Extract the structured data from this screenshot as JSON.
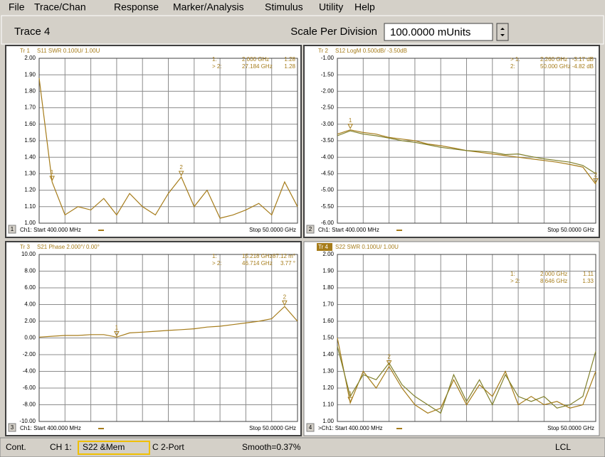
{
  "menu": [
    "File",
    "Trace/Chan",
    "Response",
    "Marker/Analysis",
    "Stimulus",
    "Utility",
    "Help"
  ],
  "toolbar": {
    "trace": "Trace 4",
    "scale_label": "Scale Per Division",
    "scale_value": "100.0000 mUnits"
  },
  "panels": [
    {
      "number": "1",
      "trace": "Tr 1",
      "description": "S11 SWR 0.100U/  1.00U",
      "ylim": [
        1,
        2
      ],
      "yticks": [
        {
          "value": 2,
          "label": "2.00"
        },
        {
          "value": 1.9,
          "label": "1.90"
        },
        {
          "value": 1.8,
          "label": "1.80"
        },
        {
          "value": 1.7,
          "label": "1.70"
        },
        {
          "value": 1.6,
          "label": "1.60"
        },
        {
          "value": 1.5,
          "label": "1.50"
        },
        {
          "value": 1.4,
          "label": "1.40"
        },
        {
          "value": 1.3,
          "label": "1.30"
        },
        {
          "value": 1.2,
          "label": "1.20"
        },
        {
          "value": 1.1,
          "label": "1.10"
        },
        {
          "value": 1,
          "label": "1.00"
        }
      ],
      "markers": [
        [
          "1:",
          "2.000 GHz",
          "1.28"
        ],
        [
          "> 2:",
          "27.184 GHz",
          "1.28"
        ]
      ],
      "marker_glyphs": [
        "1",
        "2"
      ],
      "start": "Ch1: Start  400.000 MHz",
      "stop": "Stop  50.0000 GHz",
      "traces": [
        {
          "color": "#a67c1a",
          "values": [
            1.88,
            1.25,
            1.05,
            1.1,
            1.08,
            1.15,
            1.05,
            1.18,
            1.1,
            1.05,
            1.18,
            1.28,
            1.1,
            1.2,
            1.03,
            1.05,
            1.08,
            1.12,
            1.05,
            1.25,
            1.1
          ]
        }
      ]
    },
    {
      "number": "2",
      "trace": "Tr 2",
      "description": "S12 LogM 0.500dB/  -3.50dB",
      "ylim": [
        -6,
        -1
      ],
      "yticks": [
        {
          "value": -1,
          "label": "-1.00"
        },
        {
          "value": -1.5,
          "label": "-1.50"
        },
        {
          "value": -2,
          "label": "-2.00"
        },
        {
          "value": -2.5,
          "label": "-2.50"
        },
        {
          "value": -3,
          "label": "-3.00"
        },
        {
          "value": -3.5,
          "label": "-3.50"
        },
        {
          "value": -4,
          "label": "-4.00"
        },
        {
          "value": -4.5,
          "label": "-4.50"
        },
        {
          "value": -5,
          "label": "-5.00"
        },
        {
          "value": -5.5,
          "label": "-5.50"
        },
        {
          "value": -6,
          "label": "-6.00"
        }
      ],
      "markers": [
        [
          "> 1:",
          "2.260 GHz",
          "-3.17 dB"
        ],
        [
          "2:",
          "50.000 GHz",
          "-4.82 dB"
        ]
      ],
      "marker_glyphs": [
        "1",
        "2"
      ],
      "start": "Ch1: Start  400.000 MHz",
      "stop": "Stop  50.0000 GHz",
      "traces": [
        {
          "color": "#a67c1a",
          "values": [
            -3.3,
            -3.17,
            -3.25,
            -3.3,
            -3.4,
            -3.45,
            -3.5,
            -3.6,
            -3.65,
            -3.72,
            -3.8,
            -3.85,
            -3.9,
            -3.95,
            -4.0,
            -4.05,
            -4.1,
            -4.15,
            -4.22,
            -4.3,
            -4.82
          ]
        },
        {
          "color": "#7f7f2a",
          "values": [
            -3.35,
            -3.2,
            -3.3,
            -3.35,
            -3.42,
            -3.5,
            -3.55,
            -3.62,
            -3.7,
            -3.75,
            -3.8,
            -3.82,
            -3.85,
            -3.92,
            -3.9,
            -3.98,
            -4.05,
            -4.1,
            -4.15,
            -4.25,
            -4.5
          ]
        }
      ]
    },
    {
      "number": "3",
      "trace": "Tr 3",
      "description": "S21 Phase 2.000°/  0.00°",
      "ylim": [
        -10,
        10
      ],
      "yticks": [
        {
          "value": 10,
          "label": "10.00"
        },
        {
          "value": 8,
          "label": "8.00"
        },
        {
          "value": 6,
          "label": "6.00"
        },
        {
          "value": 4,
          "label": "4.00"
        },
        {
          "value": 2,
          "label": "2.00"
        },
        {
          "value": 0,
          "label": "0.00"
        },
        {
          "value": -2,
          "label": "-2.00"
        },
        {
          "value": -4,
          "label": "-4.00"
        },
        {
          "value": -6,
          "label": "-6.00"
        },
        {
          "value": -8,
          "label": "-8.00"
        },
        {
          "value": -10,
          "label": "-10.00"
        }
      ],
      "markers": [
        [
          "1:",
          "15.218 GHz",
          "87.12 m°"
        ],
        [
          "> 2:",
          "46.714 GHz",
          "3.77 °"
        ]
      ],
      "marker_glyphs": [
        "1",
        "2"
      ],
      "start": "Ch1: Start  400.000 MHz",
      "stop": "Stop  50.0000 GHz",
      "traces": [
        {
          "color": "#a67c1a",
          "values": [
            0.1,
            0.2,
            0.3,
            0.3,
            0.4,
            0.4,
            0.1,
            0.6,
            0.7,
            0.8,
            0.9,
            1.0,
            1.1,
            1.3,
            1.4,
            1.6,
            1.8,
            2.0,
            2.3,
            3.77,
            2.0
          ]
        }
      ]
    },
    {
      "number": "4",
      "trace": "Tr 4",
      "description": "S22 SWR 0.100U/  1.00U",
      "ylim": [
        1,
        2
      ],
      "yticks": [
        {
          "value": 2,
          "label": "2.00"
        },
        {
          "value": 1.9,
          "label": "1.90"
        },
        {
          "value": 1.8,
          "label": "1.80"
        },
        {
          "value": 1.7,
          "label": "1.70"
        },
        {
          "value": 1.6,
          "label": "1.60"
        },
        {
          "value": 1.5,
          "label": "1.50"
        },
        {
          "value": 1.4,
          "label": "1.40"
        },
        {
          "value": 1.3,
          "label": "1.30"
        },
        {
          "value": 1.2,
          "label": "1.20"
        },
        {
          "value": 1.1,
          "label": "1.10"
        },
        {
          "value": 1,
          "label": "1.00"
        }
      ],
      "markers": [
        [
          "1:",
          "2.000 GHz",
          "1.11"
        ],
        [
          "> 2:",
          "8.646 GHz",
          "1.33"
        ]
      ],
      "marker_glyphs": [
        "1",
        "2"
      ],
      "start": ">Ch1: Start  400.000 MHz",
      "stop": "Stop  50.0000 GHz",
      "traces": [
        {
          "color": "#a67c1a",
          "values": [
            1.5,
            1.11,
            1.3,
            1.2,
            1.33,
            1.2,
            1.1,
            1.05,
            1.08,
            1.25,
            1.1,
            1.22,
            1.15,
            1.3,
            1.1,
            1.15,
            1.1,
            1.12,
            1.08,
            1.1,
            1.3
          ]
        },
        {
          "color": "#7f7f2a",
          "values": [
            1.45,
            1.15,
            1.28,
            1.25,
            1.35,
            1.22,
            1.15,
            1.1,
            1.05,
            1.28,
            1.12,
            1.25,
            1.1,
            1.28,
            1.15,
            1.12,
            1.15,
            1.08,
            1.1,
            1.15,
            1.42
          ]
        }
      ]
    }
  ],
  "status": {
    "mode": "Cont.",
    "channel": "CH 1:",
    "trace": "S22 &Mem",
    "port": "C 2-Port",
    "smooth": "Smooth=0.37%",
    "remote": "LCL"
  }
}
